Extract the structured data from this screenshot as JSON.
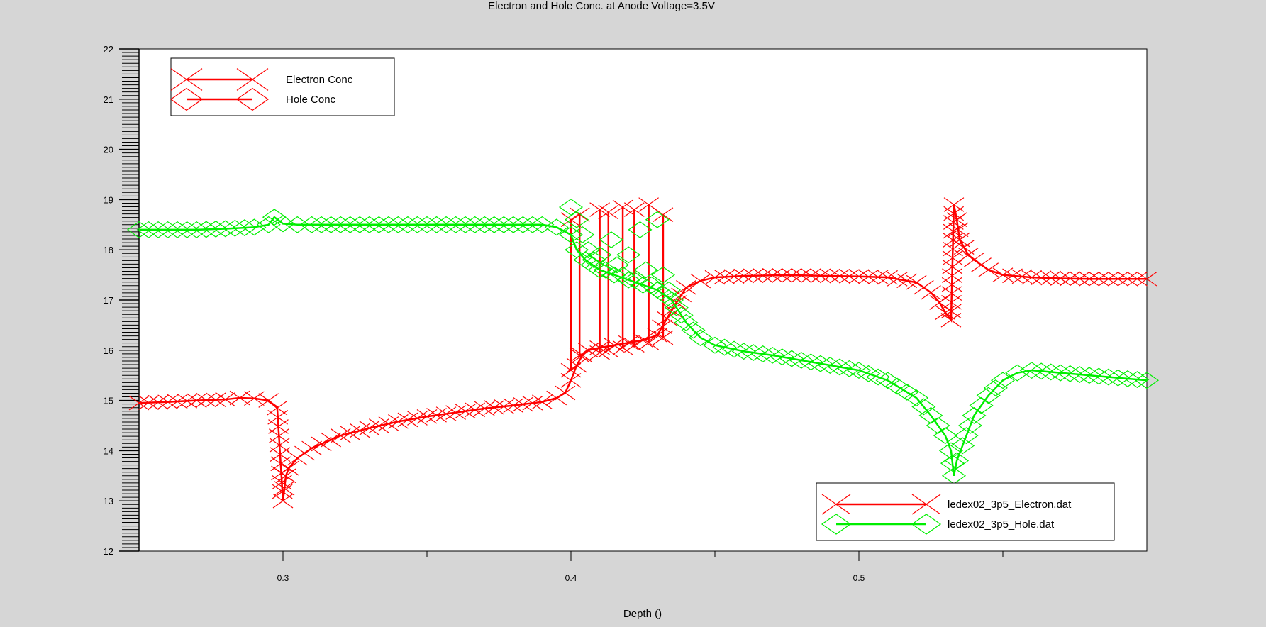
{
  "chart_data": {
    "type": "line",
    "title": "Electron and Hole Conc. at Anode Voltage=3.5V",
    "xlabel": "Depth ()",
    "ylabel": "",
    "xlim": [
      0.25,
      0.6
    ],
    "ylim": [
      12,
      22
    ],
    "x_ticks": [
      0.3,
      0.4,
      0.5
    ],
    "x_tick_labels": [
      "0.3",
      "0.4",
      "0.5"
    ],
    "y_ticks": [
      12,
      13,
      14,
      15,
      16,
      17,
      18,
      19,
      20,
      21,
      22
    ],
    "y_tick_labels": [
      "12",
      "13",
      "14",
      "15",
      "16",
      "17",
      "18",
      "19",
      "20",
      "21",
      "22"
    ],
    "grid": false,
    "legends": [
      {
        "placement": "top-left",
        "entries": [
          {
            "label": "Electron Conc",
            "marker": "x",
            "color": "#ff0000"
          },
          {
            "label": "Hole Conc",
            "marker": "diamond",
            "color": "#ff0000"
          }
        ]
      },
      {
        "placement": "bottom-right",
        "entries": [
          {
            "label": "ledex02_3p5_Electron.dat",
            "marker": "x",
            "color": "#ff0000"
          },
          {
            "label": "ledex02_3p5_Hole.dat",
            "marker": "diamond",
            "color": "#00ee00"
          }
        ]
      }
    ],
    "series": [
      {
        "name": "ledex02_3p5_Electron.dat",
        "color": "#ff0000",
        "marker": "x",
        "x": [
          0.25,
          0.26,
          0.27,
          0.28,
          0.285,
          0.29,
          0.295,
          0.298,
          0.3,
          0.301,
          0.302,
          0.305,
          0.31,
          0.32,
          0.33,
          0.34,
          0.35,
          0.36,
          0.37,
          0.38,
          0.39,
          0.395,
          0.398,
          0.4,
          0.402,
          0.404,
          0.406,
          0.41,
          0.415,
          0.42,
          0.425,
          0.43,
          0.435,
          0.44,
          0.445,
          0.45,
          0.46,
          0.47,
          0.48,
          0.49,
          0.5,
          0.51,
          0.52,
          0.525,
          0.528,
          0.53,
          0.532,
          0.533,
          0.534,
          0.535,
          0.538,
          0.54,
          0.545,
          0.55,
          0.56,
          0.57,
          0.58,
          0.59,
          0.6
        ],
        "y": [
          14.95,
          14.97,
          15.0,
          15.02,
          15.05,
          15.04,
          15.0,
          14.85,
          13.0,
          13.5,
          13.65,
          13.85,
          14.05,
          14.3,
          14.45,
          14.58,
          14.68,
          14.76,
          14.84,
          14.9,
          14.97,
          15.05,
          15.15,
          15.4,
          15.7,
          15.9,
          16.0,
          16.05,
          16.1,
          16.15,
          16.2,
          16.3,
          16.8,
          17.25,
          17.38,
          17.45,
          17.48,
          17.49,
          17.49,
          17.48,
          17.47,
          17.45,
          17.35,
          17.15,
          16.95,
          16.75,
          16.6,
          18.9,
          18.6,
          18.2,
          17.9,
          17.8,
          17.6,
          17.5,
          17.45,
          17.43,
          17.42,
          17.42,
          17.42
        ]
      },
      {
        "name": "ledex02_3p5_Hole.dat",
        "color": "#00ee00",
        "marker": "diamond",
        "x": [
          0.25,
          0.26,
          0.27,
          0.28,
          0.29,
          0.295,
          0.297,
          0.3,
          0.305,
          0.31,
          0.32,
          0.33,
          0.34,
          0.35,
          0.36,
          0.37,
          0.38,
          0.39,
          0.395,
          0.4,
          0.402,
          0.405,
          0.41,
          0.415,
          0.42,
          0.425,
          0.43,
          0.435,
          0.44,
          0.445,
          0.45,
          0.46,
          0.47,
          0.48,
          0.49,
          0.5,
          0.51,
          0.52,
          0.525,
          0.53,
          0.532,
          0.533,
          0.534,
          0.536,
          0.54,
          0.545,
          0.55,
          0.555,
          0.56,
          0.57,
          0.58,
          0.59,
          0.6
        ],
        "y": [
          18.4,
          18.4,
          18.4,
          18.42,
          18.45,
          18.5,
          18.65,
          18.52,
          18.5,
          18.5,
          18.5,
          18.5,
          18.5,
          18.5,
          18.5,
          18.5,
          18.5,
          18.5,
          18.45,
          18.3,
          18.0,
          17.8,
          17.6,
          17.5,
          17.4,
          17.3,
          17.2,
          17.0,
          16.55,
          16.25,
          16.1,
          15.98,
          15.9,
          15.8,
          15.7,
          15.6,
          15.4,
          15.05,
          14.7,
          14.3,
          14.0,
          13.5,
          13.8,
          14.1,
          14.7,
          15.1,
          15.4,
          15.55,
          15.6,
          15.55,
          15.5,
          15.45,
          15.4
        ]
      }
    ],
    "transition_spikes": {
      "name": "ledex02_3p5_Electron.dat",
      "color": "#ff0000",
      "x": [
        0.4,
        0.403,
        0.41,
        0.413,
        0.418,
        0.422,
        0.427,
        0.432
      ],
      "low": [
        15.6,
        15.9,
        15.95,
        16.0,
        16.05,
        16.1,
        16.15,
        16.25
      ],
      "high": [
        18.6,
        18.7,
        18.8,
        18.75,
        18.85,
        18.8,
        18.9,
        18.7
      ]
    },
    "transition_scatter": {
      "name": "ledex02_3p5_Hole.dat",
      "color": "#00ee00",
      "x": [
        0.4,
        0.402,
        0.404,
        0.406,
        0.408,
        0.41,
        0.412,
        0.414,
        0.416,
        0.418,
        0.42,
        0.422,
        0.424,
        0.426,
        0.428,
        0.43,
        0.432,
        0.434
      ],
      "y": [
        18.85,
        18.6,
        18.3,
        18.0,
        17.8,
        17.9,
        17.6,
        18.2,
        17.7,
        17.5,
        17.9,
        17.4,
        18.4,
        17.6,
        17.3,
        18.6,
        17.5,
        17.2
      ]
    }
  }
}
